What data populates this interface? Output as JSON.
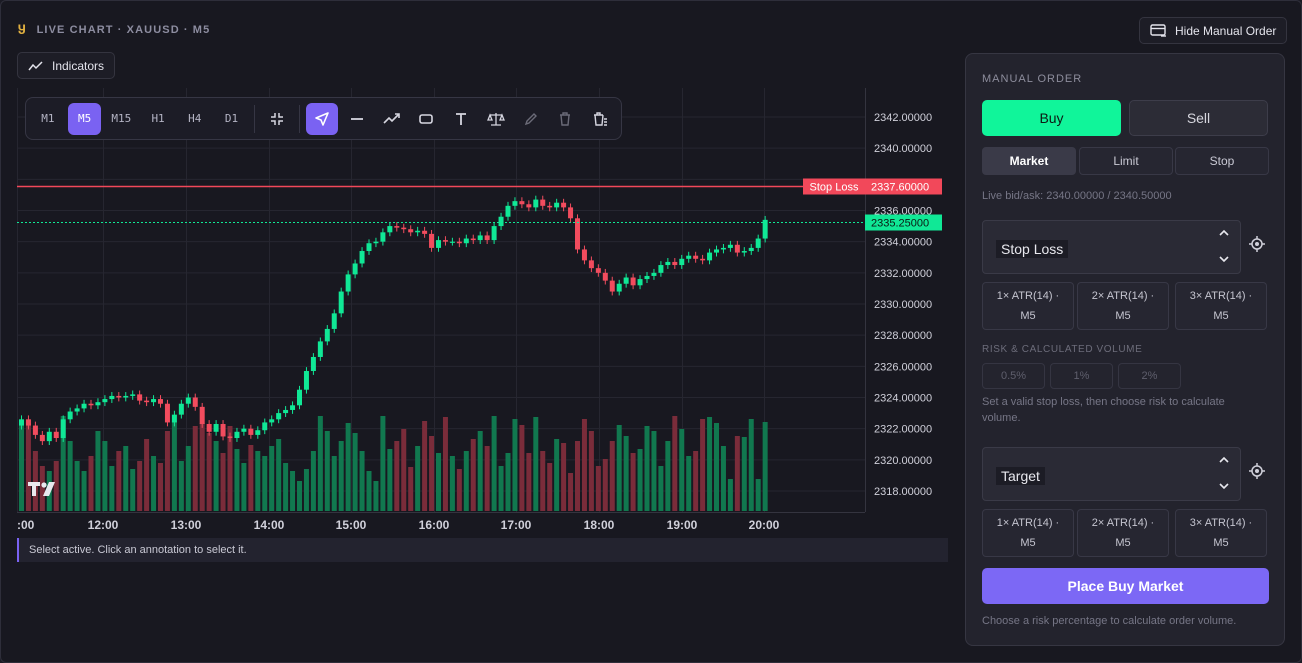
{
  "header": {
    "title": "LIVE CHART · XAUUSD · M5",
    "indicators_label": "Indicators",
    "hide_order_label": "Hide Manual Order"
  },
  "toolbar": {
    "timeframes": [
      "M1",
      "M5",
      "M15",
      "H1",
      "H4",
      "D1"
    ],
    "active_timeframe": "M5",
    "tools": [
      "fullscreen-collapse-icon",
      "cursor-arrow-icon",
      "horizontal-line-icon",
      "trend-line-icon",
      "rectangle-icon",
      "text-icon",
      "scale-balance-icon",
      "pencil-icon",
      "trash-icon",
      "clear-all-icon"
    ]
  },
  "chart": {
    "price_axis": [
      "2342.00000",
      "2340.00000",
      "2336.00000",
      "2334.00000",
      "2332.00000",
      "2330.00000",
      "2328.00000",
      "2326.00000",
      "2324.00000",
      "2322.00000",
      "2320.00000",
      "2318.00000"
    ],
    "time_axis": [
      ":00",
      "12:00",
      "13:00",
      "14:00",
      "15:00",
      "16:00",
      "17:00",
      "18:00",
      "19:00",
      "20:00"
    ],
    "stop_loss_label": "Stop Loss",
    "stop_loss_price": "2337.60000",
    "current_price": "2335.25000",
    "colors": {
      "up": "#10e896",
      "down": "#f24c5e",
      "stop": "#f2485a",
      "accent": "#7a62f2"
    }
  },
  "chart_data": {
    "type": "candlestick",
    "symbol": "XAUUSD",
    "timeframe": "M5",
    "ylim": [
      2316.6,
      2343.6
    ],
    "stop_loss": 2337.6,
    "last_price": 2335.25,
    "closes": [
      2322.6,
      2322.2,
      2321.6,
      2321.2,
      2321.8,
      2321.4,
      2322.6,
      2323.1,
      2323.3,
      2323.6,
      2323.5,
      2323.7,
      2323.9,
      2324.1,
      2324.0,
      2324.1,
      2324.2,
      2323.8,
      2323.7,
      2323.9,
      2323.6,
      2322.4,
      2322.9,
      2323.6,
      2324.0,
      2323.4,
      2322.3,
      2321.8,
      2322.3,
      2321.5,
      2321.4,
      2321.8,
      2322.0,
      2321.6,
      2321.9,
      2322.4,
      2322.6,
      2323.0,
      2323.2,
      2323.5,
      2324.5,
      2325.7,
      2326.6,
      2327.6,
      2328.4,
      2329.4,
      2330.8,
      2331.9,
      2332.6,
      2333.4,
      2333.9,
      2334.0,
      2334.6,
      2335.0,
      2334.9,
      2334.8,
      2334.6,
      2334.7,
      2334.5,
      2333.6,
      2334.1,
      2334.0,
      2334.0,
      2333.9,
      2334.2,
      2334.1,
      2334.4,
      2334.1,
      2335.0,
      2335.6,
      2336.3,
      2336.6,
      2336.4,
      2336.2,
      2336.7,
      2336.3,
      2336.2,
      2336.5,
      2336.2,
      2335.5,
      2333.5,
      2332.8,
      2332.3,
      2332.0,
      2331.5,
      2330.8,
      2331.3,
      2331.7,
      2331.2,
      2331.6,
      2331.8,
      2332.0,
      2332.5,
      2332.7,
      2332.5,
      2332.9,
      2333.1,
      2332.9,
      2332.8,
      2333.3,
      2333.5,
      2333.6,
      2333.8,
      2333.3,
      2333.4,
      2333.6,
      2334.2,
      2335.4
    ],
    "volumes": [
      88,
      88,
      60,
      45,
      40,
      50,
      95,
      70,
      50,
      40,
      55,
      80,
      70,
      45,
      60,
      65,
      42,
      50,
      72,
      55,
      48,
      80,
      90,
      50,
      65,
      85,
      88,
      78,
      70,
      58,
      85,
      62,
      48,
      66,
      60,
      55,
      65,
      72,
      48,
      40,
      30,
      42,
      60,
      95,
      80,
      55,
      70,
      88,
      78,
      60,
      40,
      30,
      95,
      62,
      70,
      82,
      44,
      65,
      90,
      75,
      58,
      94,
      55,
      42,
      60,
      72,
      80,
      65,
      95,
      45,
      58,
      92,
      86,
      58,
      94,
      60,
      48,
      72,
      68,
      38,
      70,
      92,
      80,
      45,
      52,
      70,
      86,
      75,
      58,
      62,
      85,
      80,
      45,
      70,
      95,
      82,
      55,
      60,
      92,
      94,
      88,
      65,
      32,
      75,
      74,
      92,
      32,
      89
    ]
  },
  "status": "Select active. Click an annotation to select it.",
  "order_panel": {
    "title": "MANUAL ORDER",
    "buy_label": "Buy",
    "sell_label": "Sell",
    "order_types": [
      "Market",
      "Limit",
      "Stop"
    ],
    "live_bid_ask": "Live bid/ask: 2340.00000 / 2340.50000",
    "stop_loss_field": "Stop Loss",
    "atr_options": [
      "1× ATR(14) ·\nM5",
      "2× ATR(14) ·\nM5",
      "3× ATR(14) ·\nM5"
    ],
    "risk_section": "RISK & CALCULATED VOLUME",
    "risk_options": [
      "0.5%",
      "1%",
      "2%"
    ],
    "risk_hint": "Set a valid stop loss, then choose risk to calculate volume.",
    "target_field": "Target",
    "place_label": "Place Buy Market",
    "footer_hint": "Choose a risk percentage to calculate order volume."
  }
}
